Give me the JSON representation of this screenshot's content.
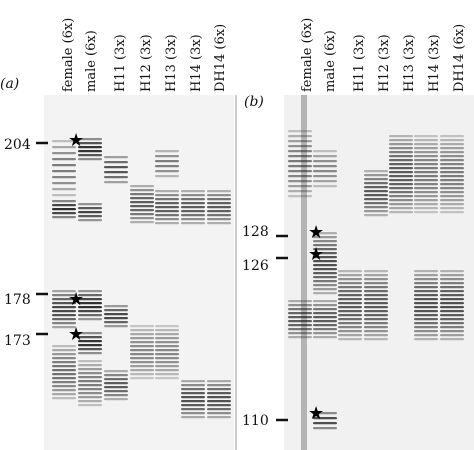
{
  "panel_a": {
    "label": "(a)",
    "lanes": [
      "female (6x)",
      "male (6x)",
      "H11 (3x)",
      "H12 (3x)",
      "H13 (3x)",
      "H14 (3x)",
      "DH14 (6x)"
    ],
    "size_markers": [
      "204",
      "178",
      "173"
    ]
  },
  "panel_b": {
    "label": "(b)",
    "lanes": [
      "female (6x)",
      "male (6x)",
      "H11 (3x)",
      "H12 (3x)",
      "H13 (3x)",
      "H14 (3x)",
      "DH14 (6x)"
    ],
    "size_markers": [
      "128",
      "126",
      "110"
    ]
  },
  "marker_symbol": "★",
  "colors": {
    "background": "#ffffff",
    "band_dark": "#1a1a1a",
    "band_mid": "#555555",
    "gel_bg": "#efefef"
  }
}
